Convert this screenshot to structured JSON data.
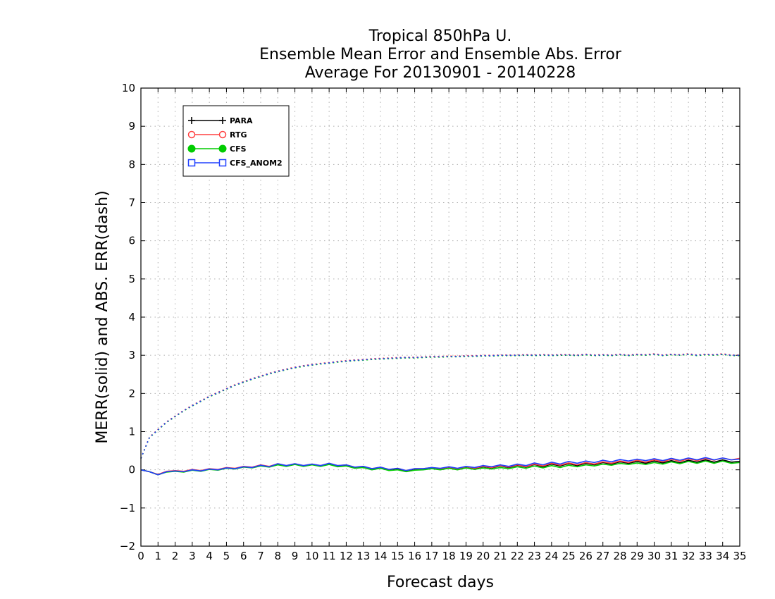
{
  "chart_data": {
    "type": "line",
    "title": [
      "Tropical 850hPa U.",
      "Ensemble Mean Error and Ensemble Abs. Error",
      "Average For 20130901 - 20140228"
    ],
    "xlabel": "Forecast days",
    "ylabel": "MERR(solid) and ABS. ERR(dash)",
    "xlim": [
      0,
      35
    ],
    "ylim": [
      -2,
      10
    ],
    "xticks": [
      0,
      1,
      2,
      3,
      4,
      5,
      6,
      7,
      8,
      9,
      10,
      11,
      12,
      13,
      14,
      15,
      16,
      17,
      18,
      19,
      20,
      21,
      22,
      23,
      24,
      25,
      26,
      27,
      28,
      29,
      30,
      31,
      32,
      33,
      34,
      35
    ],
    "yticks": [
      -2,
      -1,
      0,
      1,
      2,
      3,
      4,
      5,
      6,
      7,
      8,
      9,
      10
    ],
    "grid": true,
    "legend_position": "top-left",
    "x": [
      0,
      0.5,
      1,
      1.5,
      2,
      2.5,
      3,
      3.5,
      4,
      4.5,
      5,
      5.5,
      6,
      6.5,
      7,
      7.5,
      8,
      8.5,
      9,
      9.5,
      10,
      10.5,
      11,
      11.5,
      12,
      12.5,
      13,
      13.5,
      14,
      14.5,
      15,
      15.5,
      16,
      16.5,
      17,
      17.5,
      18,
      18.5,
      19,
      19.5,
      20,
      20.5,
      21,
      21.5,
      22,
      22.5,
      23,
      23.5,
      24,
      24.5,
      25,
      25.5,
      26,
      26.5,
      27,
      27.5,
      28,
      28.5,
      29,
      29.5,
      30,
      30.5,
      31,
      31.5,
      32,
      32.5,
      33,
      33.5,
      34,
      34.5,
      35
    ],
    "series": [
      {
        "name": "PARA",
        "color": "#000000",
        "marker": "plus",
        "style": "solid",
        "values": [
          0,
          -0.05,
          -0.13,
          -0.05,
          -0.03,
          -0.05,
          0.0,
          -0.03,
          0.02,
          0.0,
          0.05,
          0.03,
          0.08,
          0.06,
          0.12,
          0.08,
          0.15,
          0.1,
          0.15,
          0.1,
          0.14,
          0.1,
          0.16,
          0.1,
          0.12,
          0.06,
          0.08,
          0.02,
          0.06,
          0.0,
          0.03,
          -0.03,
          0.02,
          0.02,
          0.05,
          0.02,
          0.06,
          0.02,
          0.07,
          0.03,
          0.08,
          0.05,
          0.1,
          0.06,
          0.12,
          0.07,
          0.14,
          0.08,
          0.15,
          0.1,
          0.16,
          0.11,
          0.17,
          0.13,
          0.19,
          0.15,
          0.21,
          0.17,
          0.22,
          0.17,
          0.23,
          0.18,
          0.24,
          0.18,
          0.25,
          0.2,
          0.26,
          0.2,
          0.26,
          0.2,
          0.22
        ]
      },
      {
        "name": "PARA",
        "color": "#000000",
        "marker": "plus",
        "style": "dash",
        "values": [
          0.3,
          0.85,
          1.05,
          1.25,
          1.4,
          1.55,
          1.68,
          1.8,
          1.92,
          2.02,
          2.12,
          2.22,
          2.3,
          2.38,
          2.45,
          2.52,
          2.58,
          2.63,
          2.68,
          2.72,
          2.75,
          2.78,
          2.8,
          2.83,
          2.85,
          2.87,
          2.88,
          2.9,
          2.91,
          2.92,
          2.93,
          2.94,
          2.94,
          2.95,
          2.96,
          2.96,
          2.97,
          2.97,
          2.98,
          2.98,
          2.99,
          2.99,
          3.0,
          3.0,
          3.0,
          3.01,
          3.0,
          3.01,
          3.0,
          3.01,
          3.01,
          3.0,
          3.02,
          3.0,
          3.01,
          3.0,
          3.02,
          3.0,
          3.02,
          3.01,
          3.03,
          3.0,
          3.02,
          3.01,
          3.03,
          3.0,
          3.02,
          3.01,
          3.03,
          3.0,
          3.0
        ]
      },
      {
        "name": "RTG",
        "color": "#ff4040",
        "marker": "circle-open",
        "style": "solid",
        "values": [
          0,
          -0.05,
          -0.12,
          -0.04,
          -0.02,
          -0.04,
          0.01,
          -0.02,
          0.03,
          0.01,
          0.06,
          0.04,
          0.09,
          0.07,
          0.13,
          0.09,
          0.16,
          0.11,
          0.16,
          0.11,
          0.15,
          0.11,
          0.17,
          0.11,
          0.13,
          0.07,
          0.09,
          0.03,
          0.07,
          0.01,
          0.04,
          -0.02,
          0.03,
          0.03,
          0.06,
          0.03,
          0.07,
          0.03,
          0.08,
          0.04,
          0.09,
          0.06,
          0.11,
          0.07,
          0.13,
          0.08,
          0.15,
          0.1,
          0.17,
          0.12,
          0.18,
          0.13,
          0.19,
          0.15,
          0.21,
          0.17,
          0.23,
          0.19,
          0.25,
          0.2,
          0.26,
          0.21,
          0.28,
          0.22,
          0.29,
          0.24,
          0.3,
          0.25,
          0.31,
          0.26,
          0.3
        ]
      },
      {
        "name": "RTG",
        "color": "#ff4040",
        "marker": "circle-open",
        "style": "dash",
        "values": [
          0.3,
          0.86,
          1.06,
          1.26,
          1.41,
          1.56,
          1.69,
          1.81,
          1.93,
          2.03,
          2.13,
          2.23,
          2.31,
          2.39,
          2.46,
          2.53,
          2.59,
          2.64,
          2.69,
          2.73,
          2.76,
          2.79,
          2.81,
          2.84,
          2.86,
          2.88,
          2.89,
          2.91,
          2.92,
          2.93,
          2.94,
          2.95,
          2.95,
          2.96,
          2.97,
          2.97,
          2.98,
          2.98,
          2.99,
          2.99,
          3.0,
          3.0,
          3.01,
          3.01,
          3.01,
          3.02,
          3.01,
          3.02,
          3.01,
          3.02,
          3.02,
          3.01,
          3.03,
          3.01,
          3.02,
          3.01,
          3.03,
          3.01,
          3.03,
          3.02,
          3.04,
          3.01,
          3.03,
          3.02,
          3.04,
          3.01,
          3.03,
          3.02,
          3.04,
          3.01,
          3.01
        ]
      },
      {
        "name": "CFS",
        "color": "#00cc00",
        "marker": "circle-filled",
        "style": "solid",
        "values": [
          0,
          -0.05,
          -0.13,
          -0.06,
          -0.04,
          -0.06,
          -0.01,
          -0.04,
          0.01,
          -0.01,
          0.04,
          0.02,
          0.07,
          0.05,
          0.1,
          0.07,
          0.13,
          0.09,
          0.14,
          0.09,
          0.13,
          0.09,
          0.14,
          0.08,
          0.1,
          0.04,
          0.06,
          0.0,
          0.04,
          -0.02,
          0.0,
          -0.05,
          -0.01,
          0.0,
          0.03,
          0.0,
          0.04,
          0.0,
          0.05,
          0.01,
          0.05,
          0.02,
          0.06,
          0.03,
          0.08,
          0.04,
          0.1,
          0.05,
          0.11,
          0.06,
          0.12,
          0.08,
          0.13,
          0.1,
          0.15,
          0.12,
          0.17,
          0.14,
          0.18,
          0.14,
          0.19,
          0.15,
          0.21,
          0.16,
          0.22,
          0.17,
          0.23,
          0.17,
          0.23,
          0.17,
          0.19
        ]
      },
      {
        "name": "CFS",
        "color": "#00cc00",
        "marker": "circle-filled",
        "style": "dash",
        "values": [
          0.3,
          0.84,
          1.04,
          1.24,
          1.39,
          1.54,
          1.67,
          1.79,
          1.91,
          2.01,
          2.11,
          2.21,
          2.29,
          2.37,
          2.44,
          2.51,
          2.57,
          2.62,
          2.67,
          2.71,
          2.74,
          2.77,
          2.79,
          2.82,
          2.84,
          2.86,
          2.87,
          2.89,
          2.9,
          2.91,
          2.92,
          2.93,
          2.93,
          2.94,
          2.95,
          2.95,
          2.96,
          2.96,
          2.97,
          2.97,
          2.98,
          2.98,
          2.99,
          2.99,
          2.99,
          3.0,
          2.99,
          3.0,
          2.99,
          3.0,
          3.0,
          2.99,
          3.01,
          2.99,
          3.0,
          2.99,
          3.01,
          2.99,
          3.01,
          3.0,
          3.02,
          2.99,
          3.01,
          3.0,
          3.02,
          2.99,
          3.01,
          3.0,
          3.02,
          2.99,
          2.99
        ]
      },
      {
        "name": "CFS_ANOM2",
        "color": "#2040ff",
        "marker": "square-open",
        "style": "solid",
        "values": [
          0,
          -0.05,
          -0.13,
          -0.05,
          -0.03,
          -0.05,
          0.0,
          -0.03,
          0.02,
          0.0,
          0.05,
          0.03,
          0.08,
          0.06,
          0.12,
          0.08,
          0.16,
          0.11,
          0.16,
          0.11,
          0.15,
          0.11,
          0.17,
          0.11,
          0.13,
          0.07,
          0.09,
          0.03,
          0.07,
          0.01,
          0.04,
          -0.02,
          0.03,
          0.03,
          0.06,
          0.04,
          0.08,
          0.04,
          0.09,
          0.06,
          0.11,
          0.08,
          0.13,
          0.09,
          0.15,
          0.11,
          0.18,
          0.13,
          0.2,
          0.15,
          0.22,
          0.17,
          0.23,
          0.19,
          0.25,
          0.21,
          0.27,
          0.23,
          0.28,
          0.24,
          0.29,
          0.24,
          0.3,
          0.25,
          0.31,
          0.26,
          0.32,
          0.26,
          0.31,
          0.26,
          0.28
        ]
      },
      {
        "name": "CFS_ANOM2",
        "color": "#2040ff",
        "marker": "square-open",
        "style": "dash",
        "values": [
          0.3,
          0.85,
          1.05,
          1.25,
          1.4,
          1.55,
          1.68,
          1.8,
          1.92,
          2.02,
          2.12,
          2.22,
          2.3,
          2.38,
          2.45,
          2.52,
          2.58,
          2.63,
          2.68,
          2.72,
          2.75,
          2.78,
          2.8,
          2.83,
          2.85,
          2.87,
          2.88,
          2.9,
          2.91,
          2.92,
          2.93,
          2.94,
          2.94,
          2.95,
          2.96,
          2.96,
          2.97,
          2.97,
          2.98,
          2.98,
          2.99,
          2.99,
          3.0,
          3.0,
          3.0,
          3.01,
          3.0,
          3.01,
          3.0,
          3.01,
          3.01,
          3.0,
          3.02,
          3.0,
          3.01,
          3.0,
          3.02,
          3.0,
          3.02,
          3.01,
          3.03,
          3.0,
          3.02,
          3.01,
          3.03,
          3.0,
          3.02,
          3.01,
          3.03,
          3.0,
          3.0
        ]
      }
    ],
    "legend": [
      {
        "label": "PARA",
        "color": "#000000",
        "marker": "plus"
      },
      {
        "label": "RTG",
        "color": "#ff4040",
        "marker": "circle-open"
      },
      {
        "label": "CFS",
        "color": "#00cc00",
        "marker": "circle-filled"
      },
      {
        "label": "CFS_ANOM2",
        "color": "#2040ff",
        "marker": "square-open"
      }
    ]
  }
}
